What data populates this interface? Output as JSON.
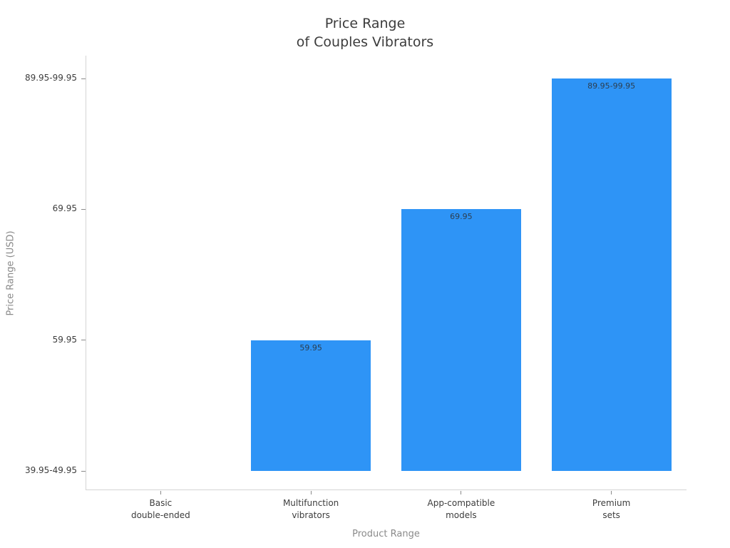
{
  "chart_data": {
    "type": "bar",
    "title": "Price Range of Couples Vibrators",
    "title_lines": [
      "Price Range",
      "of Couples Vibrators"
    ],
    "xlabel": "Product Range",
    "ylabel": "Price Range (USD)",
    "bar_color": "#2E94F6",
    "legend": "none",
    "grid": false,
    "y_scale_note": "ordinal price points, equally spaced ticks from bottom (pos 0) to top (pos 3)",
    "y_ticks": [
      {
        "label": "39.95-49.95",
        "pos": 0
      },
      {
        "label": "59.95",
        "pos": 1
      },
      {
        "label": "69.95",
        "pos": 2
      },
      {
        "label": "89.95-99.95",
        "pos": 3
      }
    ],
    "categories": [
      {
        "label": "Basic double-ended",
        "lines": [
          "Basic",
          "double-ended"
        ]
      },
      {
        "label": "Multifunction vibrators",
        "lines": [
          "Multifunction",
          "vibrators"
        ]
      },
      {
        "label": "App-compatible models",
        "lines": [
          "App-compatible",
          "models"
        ]
      },
      {
        "label": "Premium sets",
        "lines": [
          "Premium",
          "sets"
        ]
      }
    ],
    "bars": [
      {
        "category": "Basic double-ended",
        "value": "39.95-49.95",
        "pos": 0,
        "label": ""
      },
      {
        "category": "Multifunction vibrators",
        "value": "59.95",
        "pos": 1,
        "label": "59.95"
      },
      {
        "category": "App-compatible models",
        "value": "69.95",
        "pos": 2,
        "label": "69.95"
      },
      {
        "category": "Premium sets",
        "value": "89.95-99.95",
        "pos": 3,
        "label": "89.95-99.95"
      }
    ]
  }
}
